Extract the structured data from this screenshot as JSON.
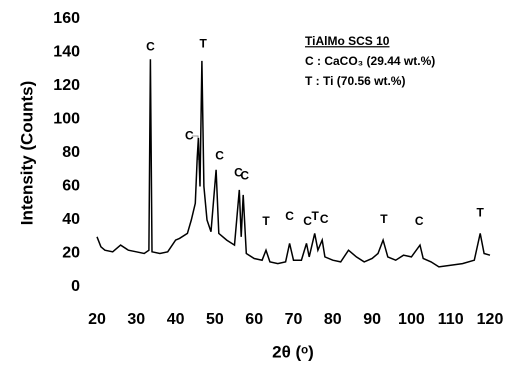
{
  "chart_data": {
    "type": "line",
    "x_label": "2θ (ᵒ)",
    "y_label": "Intensity (Counts)",
    "x": [
      20,
      21,
      22,
      24,
      26,
      28,
      30,
      32,
      33.2,
      33.6,
      34.0,
      36,
      38,
      40,
      41,
      43,
      44,
      45,
      45.5,
      45.8,
      46.2,
      46.7,
      47.2,
      48,
      49,
      50.3,
      51,
      53,
      55,
      56.2,
      56.7,
      57.2,
      58,
      60,
      62,
      63,
      64,
      66,
      68,
      69,
      70,
      72,
      73.3,
      74,
      75.4,
      76.2,
      77.3,
      78,
      80,
      82,
      84,
      86,
      88,
      90,
      91.5,
      92.8,
      94,
      96,
      98,
      100,
      102.2,
      103,
      105,
      107,
      110,
      113,
      116,
      117.5,
      118.5,
      120
    ],
    "series": [
      {
        "color": "#000000",
        "values": [
          30,
          24,
          22,
          21,
          25,
          22,
          21,
          20,
          22,
          136,
          21,
          20,
          21,
          28,
          29,
          32,
          40,
          50,
          77,
          89,
          60,
          135,
          60,
          40,
          33,
          70,
          32,
          28,
          25,
          58,
          30,
          55,
          20,
          17,
          16,
          22,
          15,
          14,
          15,
          26,
          16,
          16,
          26,
          18,
          32,
          22,
          28,
          18,
          16,
          15,
          22,
          18,
          15,
          17,
          20,
          28,
          18,
          16,
          19,
          18,
          25,
          17,
          15,
          12,
          13,
          14,
          16,
          32,
          20,
          19
        ]
      }
    ],
    "xlim": [
      20,
      120
    ],
    "xticks": [
      20,
      30,
      40,
      50,
      60,
      70,
      80,
      90,
      100,
      110,
      120
    ],
    "ylim": [
      0,
      160
    ],
    "yticks": [
      0,
      20,
      40,
      60,
      80,
      100,
      120,
      140,
      160
    ],
    "annotations": [
      "C",
      "C",
      "T",
      "C",
      "C",
      "C",
      "T",
      "C",
      "C",
      "T",
      "C",
      "T",
      "C",
      "T"
    ],
    "legend_box": [
      "TiAlMo SCS 10",
      "C : CaCO₃ (29.44 wt.%)",
      "T : Ti (70.56 wt.%)"
    ]
  }
}
